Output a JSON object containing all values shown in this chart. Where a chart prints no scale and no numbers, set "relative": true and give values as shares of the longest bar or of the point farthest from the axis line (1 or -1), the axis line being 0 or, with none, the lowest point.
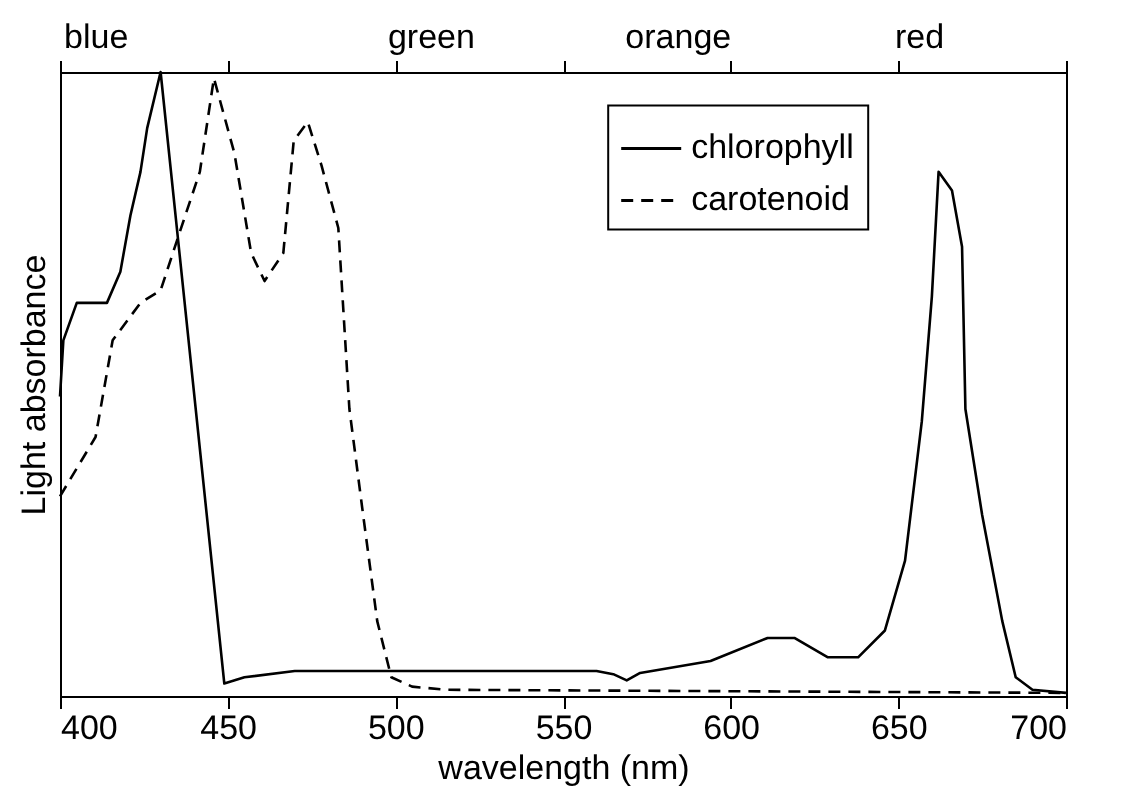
{
  "chart_data": {
    "type": "line",
    "relative": true,
    "xlabel": "wavelength (nm)",
    "ylabel": "Light absorbance",
    "xlim": [
      400,
      700
    ],
    "xticks": [
      400,
      450,
      500,
      550,
      600,
      650,
      700
    ],
    "annotations": [
      "blue",
      "green",
      "orange",
      "red"
    ],
    "legend": "top right",
    "grid": false,
    "marker": "none",
    "series": [
      {
        "name": "chlorophyll",
        "color": "#000000",
        "line_style": "solid",
        "x": [
          400,
          401,
          405,
          414,
          418,
          421,
          424,
          426,
          430,
          449,
          455,
          470,
          500,
          560,
          565,
          569,
          573,
          594,
          611,
          619,
          629,
          638,
          646,
          652,
          657,
          660,
          662,
          666,
          669,
          670,
          675,
          681,
          685,
          690,
          700
        ],
        "values": [
          0.48,
          0.57,
          0.63,
          0.63,
          0.68,
          0.77,
          0.84,
          0.91,
          1.0,
          0.02,
          0.03,
          0.04,
          0.04,
          0.04,
          0.035,
          0.025,
          0.037,
          0.056,
          0.093,
          0.093,
          0.062,
          0.062,
          0.105,
          0.217,
          0.44,
          0.64,
          0.84,
          0.81,
          0.72,
          0.46,
          0.29,
          0.12,
          0.03,
          0.01,
          0.005
        ]
      },
      {
        "name": "carotenoid",
        "color": "#000000",
        "line_style": "dashed",
        "x": [
          400,
          410.6,
          415.7,
          424,
          430,
          435.5,
          441.7,
          445.9,
          452,
          457,
          461,
          466.6,
          469.7,
          473.9,
          478,
          483,
          486.3,
          490.4,
          494.6,
          498.8,
          505,
          515,
          700
        ],
        "values": [
          0.32,
          0.415,
          0.57,
          0.63,
          0.65,
          0.74,
          0.84,
          0.99,
          0.87,
          0.71,
          0.665,
          0.71,
          0.89,
          0.92,
          0.85,
          0.75,
          0.46,
          0.29,
          0.12,
          0.03,
          0.015,
          0.01,
          0.005
        ]
      }
    ]
  }
}
